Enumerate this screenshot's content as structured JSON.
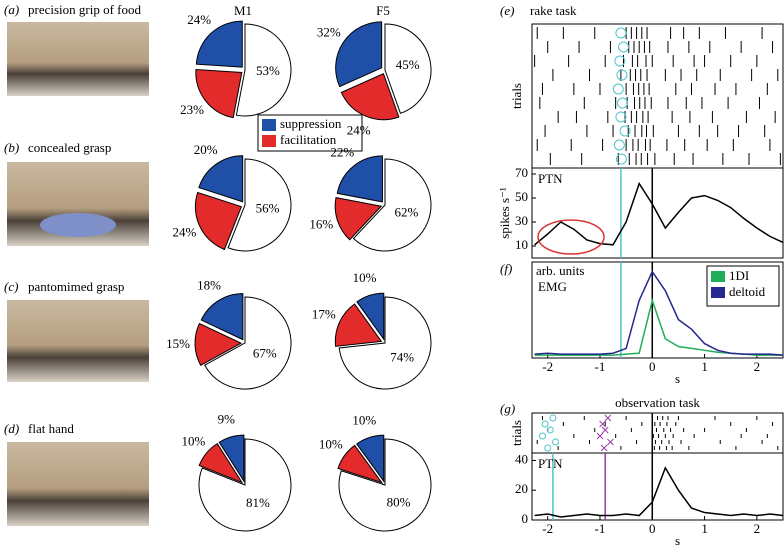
{
  "panels": [
    {
      "letter": "(a)",
      "label": "precision grip of food"
    },
    {
      "letter": "(b)",
      "label": "concealed grasp"
    },
    {
      "letter": "(c)",
      "label": "pantomimed grasp"
    },
    {
      "letter": "(d)",
      "label": "flat hand"
    },
    {
      "letter": "(e)",
      "label": "rake task"
    },
    {
      "letter": "(f)"
    },
    {
      "letter": "(g)"
    }
  ],
  "legend": [
    {
      "name": "suppression",
      "color": "#1f4fa6"
    },
    {
      "name": "facilitation",
      "color": "#e32b2b"
    }
  ],
  "chart_data": [
    {
      "type": "pie",
      "title": "M1",
      "values": [
        24,
        23,
        53
      ],
      "value_labels": [
        "24%",
        "23%",
        "53%"
      ],
      "colors": [
        "#1f4fa6",
        "#e32b2b",
        "#ffffff"
      ]
    },
    {
      "type": "pie",
      "title": "F5",
      "values": [
        32,
        24,
        45
      ],
      "value_labels": [
        "32%",
        "24%",
        "45%"
      ],
      "colors": [
        "#1f4fa6",
        "#e32b2b",
        "#ffffff"
      ]
    },
    {
      "type": "pie",
      "values": [
        20,
        24,
        56
      ],
      "value_labels": [
        "20%",
        "24%",
        "56%"
      ],
      "colors": [
        "#1f4fa6",
        "#e32b2b",
        "#ffffff"
      ]
    },
    {
      "type": "pie",
      "values": [
        22,
        16,
        62
      ],
      "value_labels": [
        "22%",
        "16%",
        "62%"
      ],
      "colors": [
        "#1f4fa6",
        "#e32b2b",
        "#ffffff"
      ]
    },
    {
      "type": "pie",
      "values": [
        18,
        15,
        67
      ],
      "value_labels": [
        "18%",
        "15%",
        "67%"
      ],
      "colors": [
        "#1f4fa6",
        "#e32b2b",
        "#ffffff"
      ]
    },
    {
      "type": "pie",
      "values": [
        10,
        17,
        74
      ],
      "value_labels": [
        "10%",
        "17%",
        "74%"
      ],
      "colors": [
        "#1f4fa6",
        "#e32b2b",
        "#ffffff"
      ]
    },
    {
      "type": "pie",
      "values": [
        9,
        10,
        81
      ],
      "value_labels": [
        "9%",
        "10%",
        "81%"
      ],
      "colors": [
        "#1f4fa6",
        "#e32b2b",
        "#ffffff"
      ]
    },
    {
      "type": "pie",
      "values": [
        10,
        10,
        80
      ],
      "value_labels": [
        "10%",
        "10%",
        "80%"
      ],
      "colors": [
        "#1f4fa6",
        "#e32b2b",
        "#ffffff"
      ]
    },
    {
      "type": "raster",
      "ylabel": "trials",
      "xlim": [
        -2.3,
        2.5
      ],
      "trials": [
        [
          -2.2,
          -1.7,
          -1.1,
          -0.5,
          -0.4,
          -0.3,
          -0.2,
          -0.1,
          0.35,
          0.6,
          0.9,
          1.4,
          2.1
        ],
        [
          -2.0,
          -1.4,
          -0.8,
          -0.45,
          -0.35,
          -0.25,
          -0.15,
          -0.05,
          0.3,
          0.7,
          1.1,
          1.7,
          2.3
        ],
        [
          -2.25,
          -1.6,
          -0.9,
          -0.55,
          -0.38,
          -0.28,
          -0.12,
          0.0,
          0.4,
          0.8,
          1.0,
          1.5,
          2.0
        ],
        [
          -1.9,
          -1.2,
          -0.6,
          -0.42,
          -0.32,
          -0.22,
          -0.1,
          0.25,
          0.55,
          0.85,
          1.3,
          1.9,
          2.4
        ],
        [
          -2.1,
          -1.5,
          -1.0,
          -0.5,
          -0.36,
          -0.26,
          -0.16,
          -0.06,
          0.45,
          0.75,
          1.2,
          1.6,
          2.2
        ],
        [
          -2.15,
          -1.3,
          -0.7,
          -0.48,
          -0.34,
          -0.24,
          -0.14,
          -0.02,
          0.3,
          0.65,
          0.95,
          1.45,
          2.05
        ],
        [
          -1.8,
          -1.45,
          -0.85,
          -0.52,
          -0.4,
          -0.3,
          -0.18,
          -0.08,
          0.38,
          0.72,
          1.15,
          1.8,
          2.35
        ],
        [
          -2.05,
          -1.25,
          -0.75,
          -0.46,
          -0.33,
          -0.2,
          -0.11,
          0.02,
          0.5,
          0.9,
          1.25,
          1.65,
          2.15
        ],
        [
          -2.2,
          -1.55,
          -0.95,
          -0.5,
          -0.37,
          -0.27,
          -0.13,
          -0.04,
          0.28,
          0.62,
          1.05,
          1.55,
          2.25
        ],
        [
          -1.95,
          -1.35,
          -0.65,
          -0.44,
          -0.31,
          -0.21,
          -0.09,
          0.05,
          0.42,
          0.78,
          1.35,
          1.85,
          2.45
        ]
      ],
      "markers": [
        -0.6,
        -0.55,
        -0.62,
        -0.58,
        -0.65,
        -0.57,
        -0.6,
        -0.52,
        -0.63,
        -0.59
      ],
      "marker_color": "#4fc4cc"
    },
    {
      "type": "line",
      "label": "PTN",
      "ylabel": "spikes s⁻¹",
      "xlim": [
        -2.3,
        2.5
      ],
      "ylim": [
        0,
        75
      ],
      "yticks": [
        10,
        30,
        50,
        70
      ],
      "x": [
        -2.25,
        -2,
        -1.75,
        -1.5,
        -1.25,
        -1,
        -0.75,
        -0.5,
        -0.25,
        0,
        0.25,
        0.5,
        0.75,
        1,
        1.25,
        1.5,
        1.75,
        2,
        2.25,
        2.5
      ],
      "series": [
        {
          "color": "#000000",
          "values": [
            11,
            20,
            30,
            24,
            15,
            12,
            11,
            30,
            62,
            45,
            25,
            38,
            50,
            52,
            48,
            42,
            33,
            25,
            18,
            13
          ]
        }
      ],
      "events": [
        {
          "x": -0.6,
          "color": "#4fc4cc"
        },
        {
          "x": 0,
          "color": "#000000"
        }
      ]
    },
    {
      "type": "line",
      "label": "EMG",
      "unit": "arb. units",
      "xlabel": "s",
      "xlim": [
        -2.3,
        2.5
      ],
      "ylim": [
        0,
        1
      ],
      "xticks": [
        -2,
        -1,
        0,
        1,
        2
      ],
      "x": [
        -2.25,
        -2,
        -1.75,
        -1.5,
        -1.25,
        -1,
        -0.75,
        -0.5,
        -0.25,
        0,
        0.25,
        0.5,
        0.75,
        1,
        1.25,
        1.5,
        1.75,
        2,
        2.25,
        2.5
      ],
      "series": [
        {
          "name": "1DI",
          "color": "#1fae5a",
          "values": [
            0.03,
            0.03,
            0.03,
            0.03,
            0.03,
            0.03,
            0.03,
            0.04,
            0.05,
            0.6,
            0.2,
            0.12,
            0.1,
            0.08,
            0.06,
            0.05,
            0.04,
            0.03,
            0.03,
            0.03
          ]
        },
        {
          "name": "deltoid",
          "color": "#26288f",
          "values": [
            0.04,
            0.05,
            0.04,
            0.04,
            0.04,
            0.04,
            0.05,
            0.1,
            0.6,
            0.9,
            0.7,
            0.4,
            0.3,
            0.15,
            0.08,
            0.05,
            0.04,
            0.04,
            0.04,
            0.03
          ]
        }
      ],
      "legend_position": "upper right",
      "events": [
        {
          "x": -0.6,
          "color": "#4fc4cc"
        },
        {
          "x": 0,
          "color": "#000000"
        }
      ]
    },
    {
      "type": "raster",
      "title": "observation task",
      "ylabel": "trials",
      "xlim": [
        -2.3,
        2.5
      ],
      "trials": [
        [
          -2.1,
          -1.3,
          -0.5,
          0.1,
          0.2,
          0.3,
          0.5,
          1.2,
          2.0
        ],
        [
          -1.7,
          -0.9,
          -0.2,
          0.05,
          0.15,
          0.28,
          0.45,
          1.5,
          2.3
        ],
        [
          -2.0,
          -1.1,
          -0.4,
          0.08,
          0.22,
          0.35,
          0.6,
          1.0,
          1.8
        ],
        [
          -1.5,
          -0.7,
          0.02,
          0.12,
          0.25,
          0.4,
          0.8,
          1.7,
          2.2
        ],
        [
          -2.2,
          -1.2,
          -0.3,
          0.06,
          0.18,
          0.32,
          0.55,
          1.3,
          2.1
        ],
        [
          -1.8,
          -0.6,
          0.04,
          0.14,
          0.27,
          0.38,
          0.7,
          1.6,
          2.4
        ]
      ],
      "markers": [
        -1.9,
        -2.05,
        -1.95,
        -2.1,
        -1.85,
        -2.0
      ],
      "marker_color": "#4fc4cc",
      "markers2": [
        -0.85,
        -0.95,
        -0.9,
        -1.0,
        -0.8,
        -0.92
      ],
      "marker2_color": "#9b3fa8",
      "events": [
        {
          "x": 0,
          "color": "#000000"
        }
      ]
    },
    {
      "type": "line",
      "label": "PTN",
      "xlabel": "s",
      "xlim": [
        -2.3,
        2.5
      ],
      "ylim": [
        0,
        45
      ],
      "yticks": [
        0,
        20,
        40
      ],
      "xticks": [
        -2,
        -1,
        0,
        1,
        2
      ],
      "x": [
        -2.25,
        -2,
        -1.75,
        -1.5,
        -1.25,
        -1,
        -0.75,
        -0.5,
        -0.25,
        0,
        0.25,
        0.5,
        0.75,
        1,
        1.25,
        1.5,
        1.75,
        2,
        2.25,
        2.5
      ],
      "series": [
        {
          "color": "#000000",
          "values": [
            3,
            4,
            2,
            3,
            4,
            3,
            3,
            4,
            3,
            12,
            35,
            20,
            8,
            5,
            4,
            3,
            4,
            3,
            4,
            3
          ]
        }
      ],
      "events": [
        {
          "x": -1.9,
          "color": "#4fc4cc"
        },
        {
          "x": -0.9,
          "color": "#9b3fa8"
        },
        {
          "x": 0,
          "color": "#000000"
        }
      ]
    }
  ]
}
